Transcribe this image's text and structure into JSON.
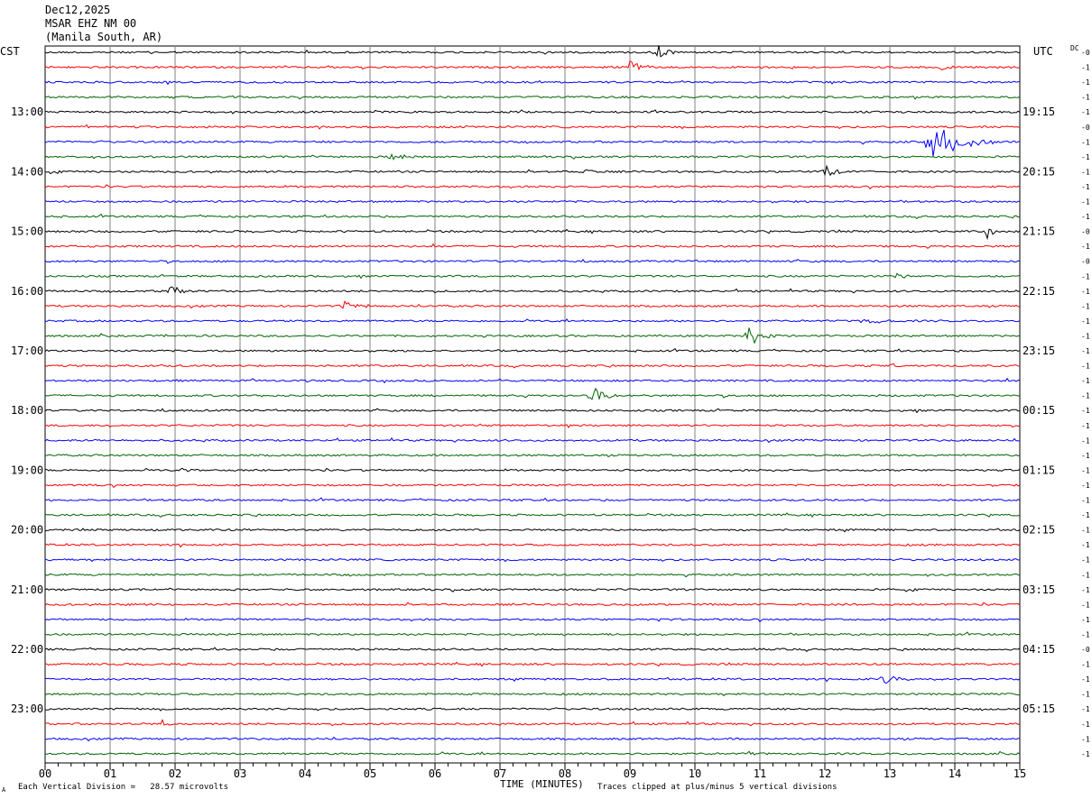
{
  "header": {
    "date": "Dec12,2025",
    "station": "MSAR EHZ NM 00",
    "location": "(Manila South, AR)"
  },
  "left_zone": "CST",
  "right_zone": "UTC",
  "dc_label": "DC",
  "footer": {
    "xlabel": "TIME (MINUTES)",
    "scale_note": "Each Vertical Division =   28.57 microvolts",
    "clip_note": "Traces clipped at plus/minus 5 vertical divisions",
    "corner_mark": "A"
  },
  "colors": {
    "black": "#000000",
    "red": "#ff0000",
    "blue": "#0000ff",
    "green": "#006400",
    "grid": "#808080"
  },
  "chart_data": {
    "type": "line",
    "title": "Dec12,2025 MSAR EHZ NM 00 (Manila South, AR)",
    "xlabel": "TIME (MINUTES)",
    "xlim": [
      0,
      15
    ],
    "x_ticks": [
      "00",
      "01",
      "02",
      "03",
      "04",
      "05",
      "06",
      "07",
      "08",
      "09",
      "10",
      "11",
      "12",
      "13",
      "14",
      "15"
    ],
    "rows_per_hour": 4,
    "trace_color_cycle": [
      "black",
      "red",
      "blue",
      "green"
    ],
    "cst_hour_labels": [
      {
        "row": 4,
        "label": "13:00"
      },
      {
        "row": 8,
        "label": "14:00"
      },
      {
        "row": 12,
        "label": "15:00"
      },
      {
        "row": 16,
        "label": "16:00"
      },
      {
        "row": 20,
        "label": "17:00"
      },
      {
        "row": 24,
        "label": "18:00"
      },
      {
        "row": 28,
        "label": "19:00"
      },
      {
        "row": 32,
        "label": "20:00"
      },
      {
        "row": 36,
        "label": "21:00"
      },
      {
        "row": 40,
        "label": "22:00"
      },
      {
        "row": 44,
        "label": "23:00"
      }
    ],
    "utc_hour_labels": [
      {
        "row": 4,
        "label": "19:15"
      },
      {
        "row": 8,
        "label": "20:15"
      },
      {
        "row": 12,
        "label": "21:15"
      },
      {
        "row": 16,
        "label": "22:15"
      },
      {
        "row": 20,
        "label": "23:15"
      },
      {
        "row": 24,
        "label": "00:15"
      },
      {
        "row": 28,
        "label": "01:15"
      },
      {
        "row": 32,
        "label": "02:15"
      },
      {
        "row": 36,
        "label": "03:15"
      },
      {
        "row": 40,
        "label": "04:15"
      },
      {
        "row": 44,
        "label": "05:15"
      }
    ],
    "dc_offsets": [
      "-0",
      "-1",
      "-1",
      "-1",
      "-1",
      "-0",
      "-1",
      "-1",
      "-1",
      "-1",
      "-1",
      "-1",
      "-0",
      "-1",
      "-0",
      "-1",
      "-1",
      "-1",
      "-1",
      "-1",
      "-1",
      "-1",
      "-1",
      "-1",
      "-1",
      "-1",
      "-1",
      "-1",
      "-1",
      "-1",
      "-1",
      "-1",
      "-1",
      "-1",
      "-1",
      "-1",
      "-1",
      "-1",
      "-1",
      "-1",
      "-0",
      "-1",
      "-1",
      "-1",
      "-1",
      "-1",
      "-1",
      "-1"
    ],
    "events": [
      {
        "row": 0,
        "minute": 9.4,
        "amp": 0.8,
        "dur": 0.3
      },
      {
        "row": 1,
        "minute": 9.0,
        "amp": 0.6,
        "dur": 0.4
      },
      {
        "row": 1,
        "minute": 13.8,
        "amp": 0.4,
        "dur": 0.2
      },
      {
        "row": 6,
        "minute": 13.6,
        "amp": 1.6,
        "dur": 1.0
      },
      {
        "row": 7,
        "minute": 5.3,
        "amp": 0.35,
        "dur": 0.6
      },
      {
        "row": 8,
        "minute": 12.0,
        "amp": 0.7,
        "dur": 0.3
      },
      {
        "row": 8,
        "minute": 8.3,
        "amp": 0.35,
        "dur": 0.3
      },
      {
        "row": 12,
        "minute": 14.5,
        "amp": 0.8,
        "dur": 0.2
      },
      {
        "row": 15,
        "minute": 13.1,
        "amp": 0.4,
        "dur": 0.3
      },
      {
        "row": 16,
        "minute": 1.9,
        "amp": 0.8,
        "dur": 0.25
      },
      {
        "row": 17,
        "minute": 4.6,
        "amp": 0.4,
        "dur": 0.5
      },
      {
        "row": 18,
        "minute": 12.6,
        "amp": 0.35,
        "dur": 0.5
      },
      {
        "row": 19,
        "minute": 10.8,
        "amp": 1.0,
        "dur": 0.5
      },
      {
        "row": 21,
        "minute": 13.0,
        "amp": 0.3,
        "dur": 0.2
      },
      {
        "row": 23,
        "minute": 8.4,
        "amp": 0.8,
        "dur": 0.5
      },
      {
        "row": 28,
        "minute": 2.1,
        "amp": 0.3,
        "dur": 0.2
      },
      {
        "row": 38,
        "minute": 9.3,
        "amp": 0.25,
        "dur": 0.3
      },
      {
        "row": 42,
        "minute": 12.9,
        "amp": 0.5,
        "dur": 0.4
      },
      {
        "row": 45,
        "minute": 1.8,
        "amp": 0.3,
        "dur": 0.2
      },
      {
        "row": 47,
        "minute": 10.8,
        "amp": 0.2,
        "dur": 0.3
      }
    ]
  }
}
